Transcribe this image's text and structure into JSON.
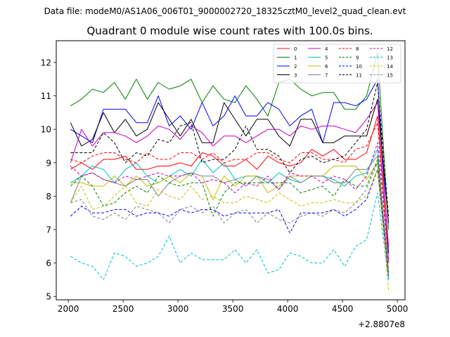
{
  "header": {
    "data_file": "Data file: modeM0/AS1A06_006T01_9000002720_18325cztM0_level2_quad_clean.evt"
  },
  "chart_data": {
    "type": "line",
    "title": "Quadrant 0 module wise count rates with 100.0s bins.",
    "xlabel": "",
    "ylabel": "",
    "x_offset_label": "+2.8807e8",
    "xlim": [
      1890,
      5070
    ],
    "ylim": [
      4.9,
      12.65
    ],
    "xticks": [
      2000,
      2500,
      3000,
      3500,
      4000,
      4500,
      5000
    ],
    "xtick_labels": [
      "2000",
      "2500",
      "3000",
      "3500",
      "4000",
      "4500",
      "5000"
    ],
    "yticks": [
      5,
      6,
      7,
      8,
      9,
      10,
      11,
      12
    ],
    "ytick_labels": [
      "5",
      "6",
      "7",
      "8",
      "9",
      "10",
      "11",
      "12"
    ],
    "grid": false,
    "legend_position": "top-right",
    "x": [
      2020,
      2120,
      2220,
      2320,
      2420,
      2520,
      2620,
      2720,
      2820,
      2920,
      3020,
      3120,
      3220,
      3320,
      3420,
      3520,
      3620,
      3720,
      3820,
      3920,
      4020,
      4120,
      4220,
      4320,
      4420,
      4520,
      4620,
      4720,
      4820,
      4920
    ],
    "series": [
      {
        "name": "0",
        "color": "#ff0000",
        "dashed": false,
        "values": [
          8.8,
          9.0,
          8.8,
          9.1,
          9.1,
          9.2,
          8.8,
          8.8,
          8.9,
          8.9,
          9.0,
          8.9,
          9.3,
          9.2,
          8.9,
          8.9,
          9.1,
          8.8,
          9.2,
          9.0,
          8.9,
          9.0,
          9.4,
          9.2,
          9.4,
          9.1,
          9.1,
          9.3,
          10.4,
          6.1
        ]
      },
      {
        "name": "1",
        "color": "#008000",
        "dashed": false,
        "values": [
          10.7,
          10.9,
          11.2,
          11.1,
          11.4,
          10.9,
          11.5,
          10.9,
          11.4,
          11.2,
          11.3,
          11.5,
          10.8,
          11.3,
          10.9,
          10.8,
          11.3,
          10.9,
          10.4,
          11.4,
          11.5,
          11.2,
          11.0,
          11.1,
          11.1,
          10.6,
          10.6,
          11.0,
          12.3,
          7.0
        ]
      },
      {
        "name": "2",
        "color": "#0000ff",
        "dashed": false,
        "values": [
          10.0,
          9.8,
          9.6,
          10.6,
          10.6,
          10.6,
          10.2,
          10.2,
          11.0,
          10.1,
          10.4,
          10.0,
          10.8,
          10.1,
          10.4,
          11.0,
          10.4,
          10.4,
          10.8,
          10.6,
          10.1,
          10.4,
          10.6,
          9.6,
          10.8,
          10.8,
          10.7,
          10.9,
          11.5,
          6.3
        ]
      },
      {
        "name": "3",
        "color": "#000000",
        "dashed": false,
        "values": [
          10.2,
          9.5,
          9.7,
          10.5,
          9.9,
          10.3,
          9.8,
          10.0,
          10.8,
          10.3,
          9.8,
          10.3,
          9.6,
          9.6,
          10.8,
          10.3,
          9.8,
          10.3,
          10.3,
          9.8,
          9.5,
          10.3,
          10.3,
          9.6,
          9.6,
          9.8,
          9.8,
          9.8,
          10.9,
          7.2
        ]
      },
      {
        "name": "4",
        "color": "#bf00bf",
        "dashed": false,
        "values": [
          9.0,
          10.0,
          9.5,
          9.9,
          9.9,
          9.8,
          9.6,
          9.8,
          10.1,
          10.0,
          9.7,
          10.1,
          9.9,
          9.5,
          9.8,
          9.8,
          9.6,
          9.8,
          10.0,
          10.0,
          9.8,
          10.1,
          10.0,
          10.1,
          10.1,
          10.0,
          9.9,
          10.3,
          10.8,
          6.5
        ]
      },
      {
        "name": "5",
        "color": "#00bfbf",
        "dashed": false,
        "values": [
          8.4,
          8.6,
          8.9,
          8.8,
          8.4,
          8.8,
          9.0,
          8.6,
          8.4,
          8.6,
          8.8,
          8.6,
          9.1,
          8.7,
          9.0,
          8.5,
          8.6,
          8.6,
          8.4,
          8.7,
          8.5,
          8.4,
          8.6,
          8.6,
          8.5,
          8.3,
          8.6,
          8.7,
          9.4,
          5.5
        ]
      },
      {
        "name": "6",
        "color": "#bfbf00",
        "dashed": false,
        "values": [
          8.4,
          8.4,
          8.3,
          8.3,
          8.6,
          8.3,
          8.6,
          8.3,
          8.4,
          8.6,
          8.4,
          8.7,
          8.6,
          7.9,
          8.6,
          8.3,
          8.6,
          8.6,
          8.1,
          8.3,
          8.6,
          8.6,
          8.6,
          8.6,
          8.9,
          8.9,
          8.9,
          8.5,
          9.0,
          5.6
        ]
      },
      {
        "name": "7",
        "color": "#808080",
        "dashed": false,
        "values": [
          7.8,
          8.6,
          8.7,
          8.5,
          8.4,
          8.3,
          8.5,
          8.5,
          8.0,
          8.4,
          8.6,
          8.7,
          8.6,
          8.6,
          8.4,
          8.5,
          8.3,
          8.6,
          8.5,
          8.2,
          8.6,
          8.4,
          8.6,
          8.6,
          8.4,
          8.4,
          8.8,
          8.8,
          9.2,
          5.8
        ]
      },
      {
        "name": "8",
        "color": "#ff0000",
        "dashed": true,
        "values": [
          9.1,
          9.0,
          9.2,
          9.3,
          9.3,
          9.1,
          9.0,
          9.3,
          9.1,
          9.1,
          9.3,
          9.3,
          9.1,
          9.3,
          9.0,
          9.1,
          9.1,
          9.3,
          9.3,
          9.1,
          9.0,
          9.3,
          9.3,
          9.1,
          9.1,
          9.0,
          9.4,
          9.5,
          10.2,
          6.0
        ]
      },
      {
        "name": "9",
        "color": "#008000",
        "dashed": true,
        "values": [
          8.3,
          8.6,
          8.3,
          7.7,
          7.8,
          8.1,
          8.3,
          8.1,
          8.6,
          8.4,
          8.3,
          8.4,
          8.4,
          7.4,
          8.1,
          8.4,
          8.4,
          8.4,
          8.4,
          8.4,
          8.4,
          8.1,
          8.2,
          8.3,
          8.0,
          8.5,
          8.3,
          8.3,
          9.1,
          5.7
        ]
      },
      {
        "name": "10",
        "color": "#0000ff",
        "dashed": true,
        "values": [
          7.4,
          7.7,
          7.5,
          7.5,
          7.6,
          7.6,
          7.4,
          7.5,
          7.5,
          7.4,
          7.6,
          7.5,
          7.6,
          7.6,
          7.4,
          7.5,
          7.5,
          7.5,
          7.5,
          7.6,
          6.9,
          7.5,
          7.5,
          7.5,
          7.6,
          7.4,
          7.6,
          7.9,
          8.8,
          5.6
        ]
      },
      {
        "name": "11",
        "color": "#000000",
        "dashed": true,
        "values": [
          9.3,
          9.3,
          9.3,
          9.9,
          9.6,
          9.0,
          9.3,
          9.2,
          9.7,
          9.6,
          10.1,
          10.2,
          9.0,
          9.1,
          9.1,
          9.4,
          10.1,
          9.4,
          9.4,
          9.2,
          8.7,
          9.1,
          9.2,
          9.0,
          9.1,
          9.2,
          9.6,
          10.0,
          11.4,
          7.4
        ]
      },
      {
        "name": "12",
        "color": "#bf00bf",
        "dashed": true,
        "values": [
          8.9,
          8.6,
          8.7,
          8.5,
          8.4,
          8.6,
          8.5,
          8.6,
          8.7,
          8.6,
          8.6,
          8.7,
          8.4,
          8.5,
          8.4,
          8.1,
          8.4,
          8.3,
          8.6,
          8.2,
          8.7,
          8.6,
          8.6,
          8.4,
          8.6,
          8.5,
          8.2,
          8.6,
          9.6,
          6.1
        ]
      },
      {
        "name": "13",
        "color": "#00bfbf",
        "dashed": true,
        "values": [
          6.2,
          6.0,
          5.9,
          5.5,
          6.3,
          6.2,
          5.9,
          6.0,
          6.2,
          6.8,
          6.0,
          6.3,
          6.1,
          6.1,
          6.1,
          6.4,
          6.0,
          6.4,
          5.7,
          5.8,
          6.3,
          6.2,
          6.0,
          6.0,
          6.4,
          5.9,
          6.5,
          6.7,
          8.1,
          5.5
        ]
      },
      {
        "name": "14",
        "color": "#bfbf00",
        "dashed": true,
        "values": [
          7.8,
          8.3,
          7.6,
          7.7,
          8.0,
          8.3,
          7.8,
          7.7,
          8.2,
          8.0,
          7.9,
          8.3,
          7.9,
          8.0,
          7.8,
          7.8,
          8.0,
          7.9,
          7.8,
          8.1,
          7.9,
          7.7,
          7.8,
          7.8,
          7.9,
          7.8,
          7.8,
          8.0,
          8.8,
          5.2
        ]
      },
      {
        "name": "15",
        "color": "#808080",
        "dashed": true,
        "values": [
          7.8,
          7.9,
          7.4,
          7.3,
          7.5,
          7.3,
          7.7,
          7.6,
          7.5,
          7.2,
          7.6,
          7.7,
          7.5,
          7.7,
          7.2,
          7.5,
          7.6,
          7.2,
          7.5,
          7.3,
          7.2,
          7.4,
          7.5,
          7.4,
          7.6,
          7.5,
          7.8,
          8.2,
          9.0,
          5.6
        ]
      }
    ]
  }
}
